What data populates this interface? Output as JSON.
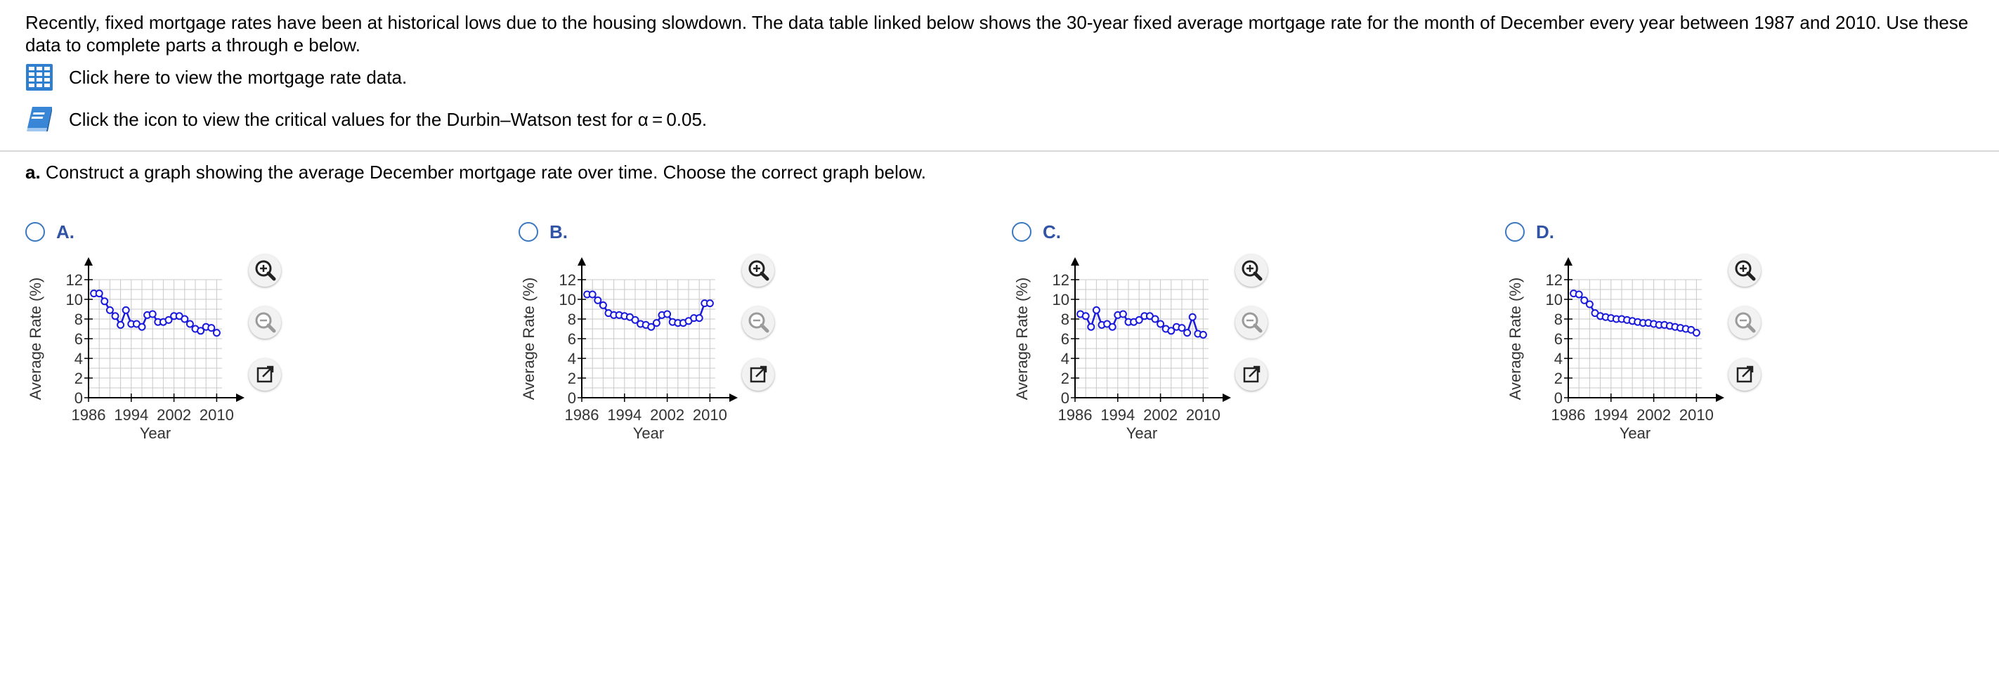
{
  "intro": "Recently, fixed mortgage rates have been at historical lows due to the housing slowdown. The data table linked below shows the 30-year fixed average mortgage rate for the month of December every year between 1987 and 2010. Use these data to complete parts a through e below.",
  "links": {
    "data_table": "Click here to view the mortgage rate data.",
    "critical_values": "Click the icon to view the critical values for the Durbin–Watson test for α = 0.05."
  },
  "question": {
    "label": "a.",
    "text": " Construct a graph showing the average December mortgage rate over time. Choose the correct graph below."
  },
  "icons": {
    "data_table": "table-grid-icon",
    "critical_values": "book-icon",
    "zoom_in": "zoom-in-icon",
    "zoom_out": "zoom-out-icon",
    "open_new": "open-new-window-icon"
  },
  "colors": {
    "series": "#1a1adc",
    "radio": "#3b78c2",
    "option_letter": "#3153a6",
    "grid": "#c8c8c8"
  },
  "options": [
    {
      "letter": "A.",
      "chart_data": {
        "type": "line",
        "xlabel": "Year",
        "ylabel": "Average Rate (%)",
        "xticks": [
          "1986",
          "1994",
          "2002",
          "2010"
        ],
        "yticks": [
          "0",
          "2",
          "4",
          "6",
          "8",
          "10",
          "12"
        ],
        "xlim": [
          1986,
          2011
        ],
        "ylim": [
          0,
          12
        ],
        "grid": true,
        "x": [
          1987,
          1988,
          1989,
          1990,
          1991,
          1992,
          1993,
          1994,
          1995,
          1996,
          1997,
          1998,
          1999,
          2000,
          2001,
          2002,
          2003,
          2004,
          2005,
          2006,
          2007,
          2008,
          2009,
          2010
        ],
        "values": [
          10.6,
          10.6,
          9.8,
          8.9,
          8.3,
          7.4,
          8.9,
          7.5,
          7.5,
          7.2,
          8.4,
          8.5,
          7.7,
          7.7,
          7.9,
          8.3,
          8.3,
          8.0,
          7.5,
          7.0,
          6.8,
          7.2,
          7.1,
          6.6
        ]
      }
    },
    {
      "letter": "B.",
      "chart_data": {
        "type": "line",
        "xlabel": "Year",
        "ylabel": "Average Rate (%)",
        "xticks": [
          "1986",
          "1994",
          "2002",
          "2010"
        ],
        "yticks": [
          "0",
          "2",
          "4",
          "6",
          "8",
          "10",
          "12"
        ],
        "xlim": [
          1986,
          2011
        ],
        "ylim": [
          0,
          12
        ],
        "grid": true,
        "x": [
          1987,
          1988,
          1989,
          1990,
          1991,
          1992,
          1993,
          1994,
          1995,
          1996,
          1997,
          1998,
          1999,
          2000,
          2001,
          2002,
          2003,
          2004,
          2005,
          2006,
          2007,
          2008,
          2009,
          2010
        ],
        "values": [
          10.5,
          10.5,
          9.9,
          9.4,
          8.6,
          8.4,
          8.4,
          8.3,
          8.2,
          7.9,
          7.5,
          7.4,
          7.2,
          7.6,
          8.4,
          8.5,
          7.7,
          7.6,
          7.6,
          7.8,
          8.1,
          8.1,
          9.6,
          9.6
        ]
      }
    },
    {
      "letter": "C.",
      "chart_data": {
        "type": "line",
        "xlabel": "Year",
        "ylabel": "Average Rate (%)",
        "xticks": [
          "1986",
          "1994",
          "2002",
          "2010"
        ],
        "yticks": [
          "0",
          "2",
          "4",
          "6",
          "8",
          "10",
          "12"
        ],
        "xlim": [
          1986,
          2011
        ],
        "ylim": [
          0,
          12
        ],
        "grid": true,
        "x": [
          1987,
          1988,
          1989,
          1990,
          1991,
          1992,
          1993,
          1994,
          1995,
          1996,
          1997,
          1998,
          1999,
          2000,
          2001,
          2002,
          2003,
          2004,
          2005,
          2006,
          2007,
          2008,
          2009,
          2010
        ],
        "values": [
          8.5,
          8.3,
          7.2,
          8.9,
          7.4,
          7.5,
          7.2,
          8.4,
          8.5,
          7.7,
          7.7,
          7.9,
          8.3,
          8.3,
          8.0,
          7.5,
          7.0,
          6.8,
          7.2,
          7.1,
          6.6,
          8.2,
          6.5,
          6.4
        ]
      }
    },
    {
      "letter": "D.",
      "chart_data": {
        "type": "line",
        "xlabel": "Year",
        "ylabel": "Average Rate (%)",
        "xticks": [
          "1986",
          "1994",
          "2002",
          "2010"
        ],
        "yticks": [
          "0",
          "2",
          "4",
          "6",
          "8",
          "10",
          "12"
        ],
        "xlim": [
          1986,
          2011
        ],
        "ylim": [
          0,
          12
        ],
        "grid": true,
        "x": [
          1987,
          1988,
          1989,
          1990,
          1991,
          1992,
          1993,
          1994,
          1995,
          1996,
          1997,
          1998,
          1999,
          2000,
          2001,
          2002,
          2003,
          2004,
          2005,
          2006,
          2007,
          2008,
          2009,
          2010
        ],
        "values": [
          10.6,
          10.5,
          9.9,
          9.5,
          8.6,
          8.3,
          8.2,
          8.1,
          8.0,
          8.0,
          7.9,
          7.8,
          7.7,
          7.6,
          7.6,
          7.5,
          7.4,
          7.4,
          7.3,
          7.2,
          7.1,
          7.0,
          6.9,
          6.6
        ]
      }
    }
  ]
}
